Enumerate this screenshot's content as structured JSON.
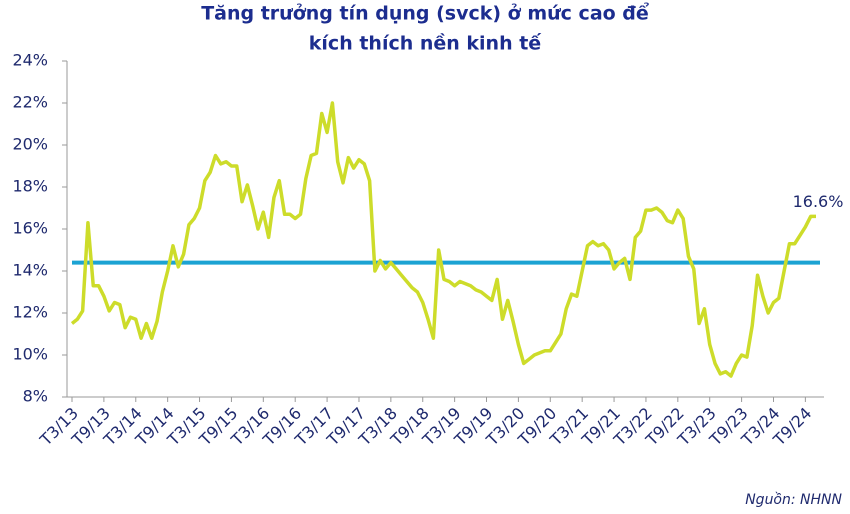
{
  "chart_data": {
    "type": "line",
    "title": [
      "Tăng trưởng tín dụng (svck) ở mức cao để",
      "kích thích nền kinh tế"
    ],
    "source": "Nguồn: NHNN",
    "end_label": "16.6%",
    "categories": [
      "T3/13",
      null,
      null,
      null,
      null,
      null,
      "T9/13",
      null,
      null,
      null,
      null,
      null,
      "T3/14",
      null,
      null,
      null,
      null,
      null,
      "T9/14",
      null,
      null,
      null,
      null,
      null,
      "T3/15",
      null,
      null,
      null,
      null,
      null,
      "T9/15",
      null,
      null,
      null,
      null,
      null,
      "T3/16",
      null,
      null,
      null,
      null,
      null,
      "T9/16",
      null,
      null,
      null,
      null,
      null,
      "T3/17",
      null,
      null,
      null,
      null,
      null,
      "T9/17",
      null,
      null,
      null,
      null,
      null,
      "T3/18",
      null,
      null,
      null,
      null,
      null,
      "T9/18",
      null,
      null,
      null,
      null,
      null,
      "T3/19",
      null,
      null,
      null,
      null,
      null,
      "T9/19",
      null,
      null,
      null,
      null,
      null,
      "T3/20",
      null,
      null,
      null,
      null,
      null,
      "T9/20",
      null,
      null,
      null,
      null,
      null,
      "T3/21",
      null,
      null,
      null,
      null,
      null,
      "T9/21",
      null,
      null,
      null,
      null,
      null,
      "T3/22",
      null,
      null,
      null,
      null,
      null,
      "T9/22",
      null,
      null,
      null,
      null,
      null,
      "T3/23",
      null,
      null,
      null,
      null,
      null,
      "T9/23",
      null,
      null,
      null,
      null,
      null,
      "T3/24",
      null,
      null,
      null,
      null,
      null,
      "T9/24",
      null,
      null
    ],
    "series": [
      {
        "color": "#cddc2a",
        "values": [
          11.5,
          11.7,
          12.1,
          16.3,
          13.3,
          13.3,
          12.8,
          12.1,
          12.5,
          12.4,
          11.3,
          11.8,
          11.7,
          10.8,
          11.5,
          10.8,
          11.6,
          13.0,
          14.0,
          15.2,
          14.2,
          14.8,
          16.2,
          16.5,
          17.0,
          18.3,
          18.7,
          19.5,
          19.1,
          19.2,
          19.0,
          19.0,
          17.3,
          18.1,
          17.1,
          16.0,
          16.8,
          15.6,
          17.5,
          18.3,
          16.7,
          16.7,
          16.5,
          16.7,
          18.4,
          19.5,
          19.6,
          21.5,
          20.6,
          22.0,
          19.2,
          18.2,
          19.4,
          18.9,
          19.3,
          19.1,
          18.3,
          14.0,
          14.5,
          14.1,
          14.4,
          14.1,
          13.8,
          13.5,
          13.2,
          13.0,
          12.5,
          11.7,
          10.8,
          15.0,
          13.6,
          13.5,
          13.3,
          13.5,
          13.4,
          13.3,
          13.1,
          13.0,
          12.8,
          12.6,
          13.6,
          11.7,
          12.6,
          11.6,
          10.5,
          9.6,
          9.8,
          10.0,
          10.1,
          10.2,
          10.2,
          10.6,
          11.0,
          12.2,
          12.9,
          12.8,
          14.0,
          15.2,
          15.4,
          15.2,
          15.3,
          15.0,
          14.1,
          14.4,
          14.6,
          13.6,
          15.6,
          15.9,
          16.9,
          16.9,
          17.0,
          16.8,
          16.4,
          16.3,
          16.9,
          16.5,
          14.7,
          14.1,
          11.5,
          12.2,
          10.5,
          9.6,
          9.1,
          9.2,
          9.0,
          9.6,
          10.0,
          9.9,
          11.4,
          13.8,
          12.8,
          12.0,
          12.5,
          12.7,
          14.0,
          15.3,
          15.3,
          15.7,
          16.1,
          16.6,
          16.6
        ]
      }
    ],
    "reference_line": {
      "value": 14.4,
      "color": "#1ca3d3"
    },
    "ylim": [
      8,
      24
    ],
    "yticks": [
      {
        "value": 8,
        "label": "8%"
      },
      {
        "value": 10,
        "label": "10%"
      },
      {
        "value": 12,
        "label": "12%"
      },
      {
        "value": 14,
        "label": "14%"
      },
      {
        "value": 16,
        "label": "16%"
      },
      {
        "value": 18,
        "label": "18%"
      },
      {
        "value": 20,
        "label": "20%"
      },
      {
        "value": 22,
        "label": "22%"
      },
      {
        "value": 24,
        "label": "24%"
      }
    ]
  }
}
